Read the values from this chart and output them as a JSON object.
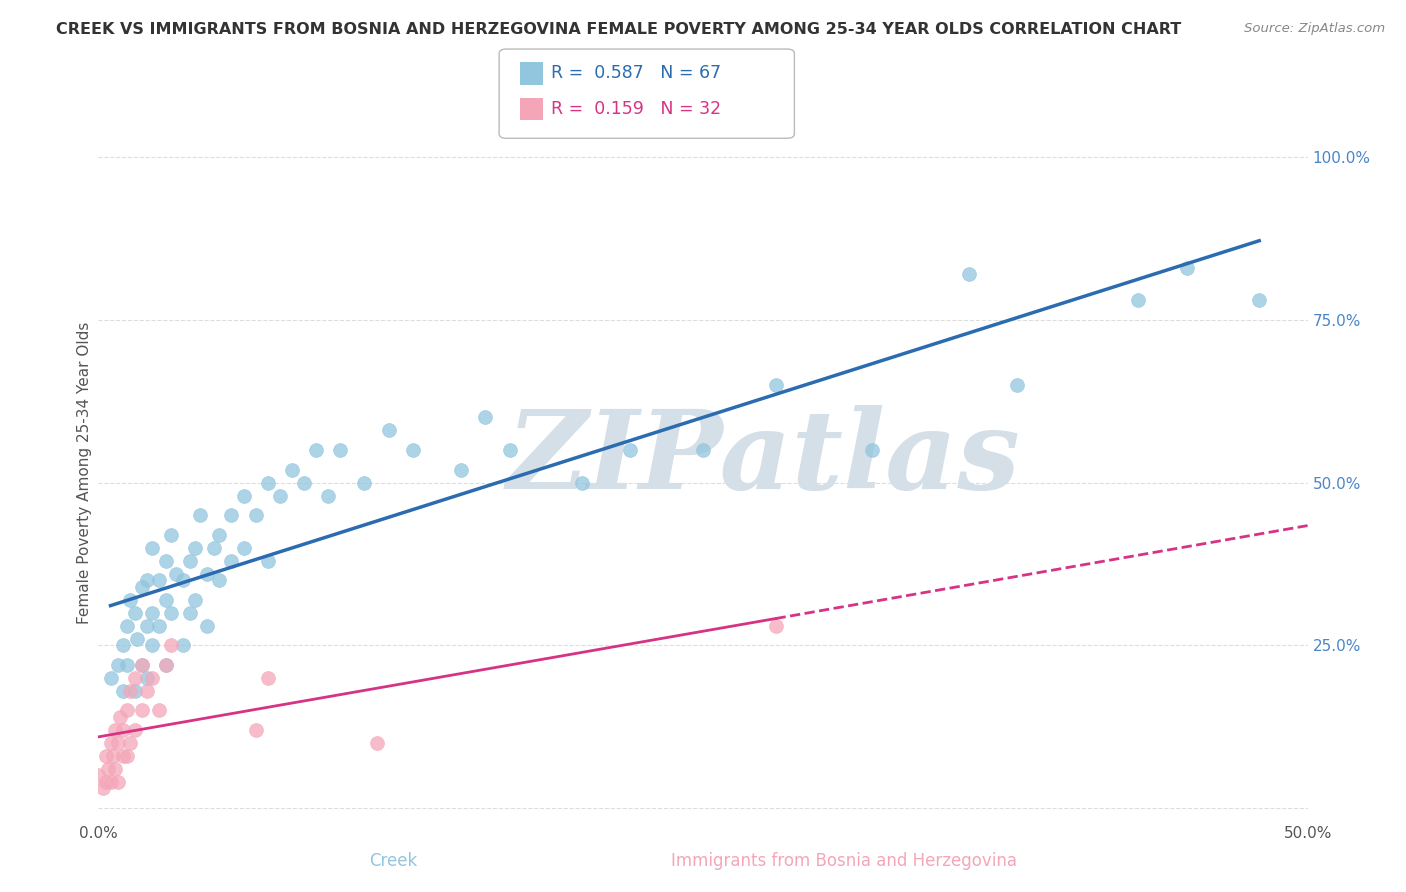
{
  "title": "CREEK VS IMMIGRANTS FROM BOSNIA AND HERZEGOVINA FEMALE POVERTY AMONG 25-34 YEAR OLDS CORRELATION CHART",
  "source": "Source: ZipAtlas.com",
  "ylabel": "Female Poverty Among 25-34 Year Olds",
  "legend_blue_R": "0.587",
  "legend_blue_N": "67",
  "legend_pink_R": "0.159",
  "legend_pink_N": "32",
  "blue_color": "#92c5de",
  "pink_color": "#f4a6b8",
  "trendline_blue_color": "#2b6cb0",
  "trendline_pink_color": "#d63384",
  "watermark": "ZIPatlas",
  "watermark_color": "#d4dfe8",
  "xlim": [
    0.0,
    0.5
  ],
  "ylim": [
    -0.02,
    1.05
  ],
  "blue_scatter": [
    [
      0.005,
      0.2
    ],
    [
      0.008,
      0.22
    ],
    [
      0.01,
      0.25
    ],
    [
      0.01,
      0.18
    ],
    [
      0.012,
      0.28
    ],
    [
      0.012,
      0.22
    ],
    [
      0.013,
      0.32
    ],
    [
      0.015,
      0.3
    ],
    [
      0.015,
      0.18
    ],
    [
      0.016,
      0.26
    ],
    [
      0.018,
      0.34
    ],
    [
      0.018,
      0.22
    ],
    [
      0.02,
      0.28
    ],
    [
      0.02,
      0.35
    ],
    [
      0.02,
      0.2
    ],
    [
      0.022,
      0.4
    ],
    [
      0.022,
      0.25
    ],
    [
      0.022,
      0.3
    ],
    [
      0.025,
      0.35
    ],
    [
      0.025,
      0.28
    ],
    [
      0.028,
      0.32
    ],
    [
      0.028,
      0.38
    ],
    [
      0.028,
      0.22
    ],
    [
      0.03,
      0.3
    ],
    [
      0.03,
      0.42
    ],
    [
      0.032,
      0.36
    ],
    [
      0.035,
      0.35
    ],
    [
      0.035,
      0.25
    ],
    [
      0.038,
      0.38
    ],
    [
      0.038,
      0.3
    ],
    [
      0.04,
      0.4
    ],
    [
      0.04,
      0.32
    ],
    [
      0.042,
      0.45
    ],
    [
      0.045,
      0.36
    ],
    [
      0.045,
      0.28
    ],
    [
      0.048,
      0.4
    ],
    [
      0.05,
      0.42
    ],
    [
      0.05,
      0.35
    ],
    [
      0.055,
      0.45
    ],
    [
      0.055,
      0.38
    ],
    [
      0.06,
      0.48
    ],
    [
      0.06,
      0.4
    ],
    [
      0.065,
      0.45
    ],
    [
      0.07,
      0.5
    ],
    [
      0.07,
      0.38
    ],
    [
      0.075,
      0.48
    ],
    [
      0.08,
      0.52
    ],
    [
      0.085,
      0.5
    ],
    [
      0.09,
      0.55
    ],
    [
      0.095,
      0.48
    ],
    [
      0.1,
      0.55
    ],
    [
      0.11,
      0.5
    ],
    [
      0.12,
      0.58
    ],
    [
      0.13,
      0.55
    ],
    [
      0.15,
      0.52
    ],
    [
      0.16,
      0.6
    ],
    [
      0.17,
      0.55
    ],
    [
      0.2,
      0.5
    ],
    [
      0.22,
      0.55
    ],
    [
      0.25,
      0.55
    ],
    [
      0.28,
      0.65
    ],
    [
      0.32,
      0.55
    ],
    [
      0.36,
      0.82
    ],
    [
      0.38,
      0.65
    ],
    [
      0.43,
      0.78
    ],
    [
      0.45,
      0.83
    ],
    [
      0.48,
      0.78
    ]
  ],
  "pink_scatter": [
    [
      0.0,
      0.05
    ],
    [
      0.002,
      0.03
    ],
    [
      0.003,
      0.08
    ],
    [
      0.003,
      0.04
    ],
    [
      0.004,
      0.06
    ],
    [
      0.005,
      0.1
    ],
    [
      0.005,
      0.04
    ],
    [
      0.006,
      0.08
    ],
    [
      0.007,
      0.12
    ],
    [
      0.007,
      0.06
    ],
    [
      0.008,
      0.1
    ],
    [
      0.008,
      0.04
    ],
    [
      0.009,
      0.14
    ],
    [
      0.01,
      0.08
    ],
    [
      0.01,
      0.12
    ],
    [
      0.012,
      0.15
    ],
    [
      0.012,
      0.08
    ],
    [
      0.013,
      0.18
    ],
    [
      0.013,
      0.1
    ],
    [
      0.015,
      0.12
    ],
    [
      0.015,
      0.2
    ],
    [
      0.018,
      0.15
    ],
    [
      0.018,
      0.22
    ],
    [
      0.02,
      0.18
    ],
    [
      0.022,
      0.2
    ],
    [
      0.025,
      0.15
    ],
    [
      0.028,
      0.22
    ],
    [
      0.03,
      0.25
    ],
    [
      0.065,
      0.12
    ],
    [
      0.07,
      0.2
    ],
    [
      0.115,
      0.1
    ],
    [
      0.28,
      0.28
    ]
  ],
  "background_color": "#ffffff",
  "grid_color": "#dddddd"
}
